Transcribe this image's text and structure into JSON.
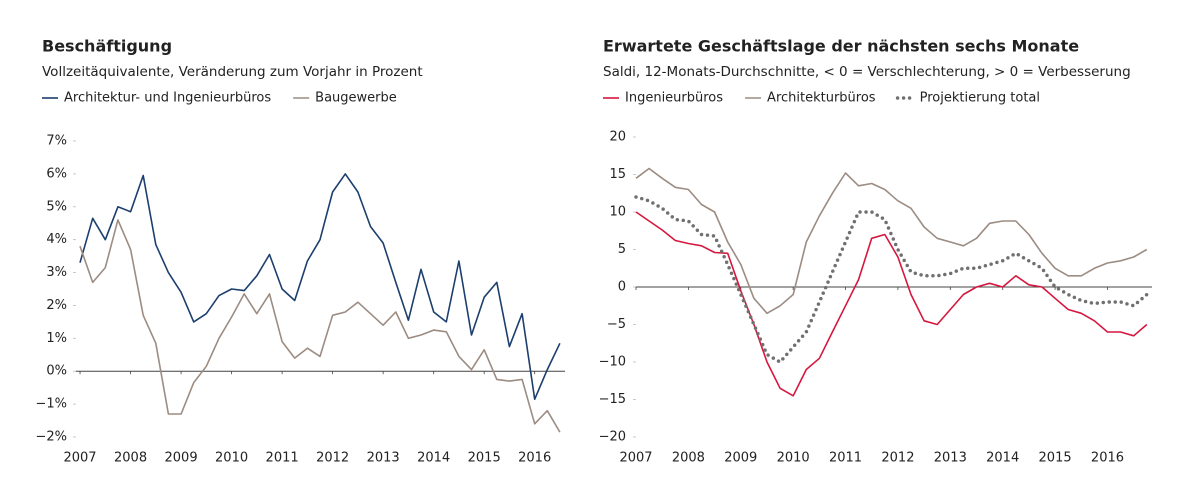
{
  "chart_data": [
    {
      "type": "line",
      "title": "Beschäftigung",
      "subtitle": "Vollzeitäquivalente, Veränderung zum Vorjahr in Prozent",
      "x": [
        2007,
        2007.25,
        2007.5,
        2007.75,
        2008,
        2008.25,
        2008.5,
        2008.75,
        2009,
        2009.25,
        2009.5,
        2009.75,
        2010,
        2010.25,
        2010.5,
        2010.75,
        2011,
        2011.25,
        2011.5,
        2011.75,
        2012,
        2012.25,
        2012.5,
        2012.75,
        2013,
        2013.25,
        2013.5,
        2013.75,
        2014,
        2014.25,
        2014.5,
        2014.75,
        2015,
        2015.25,
        2015.5,
        2015.75,
        2016,
        2016.25,
        2016.5
      ],
      "series": [
        {
          "name": "Architektur- und Ingenieurbüros",
          "color": "#1c3f6e",
          "values": [
            3.3,
            4.65,
            4.0,
            5.0,
            4.85,
            5.95,
            3.85,
            3.0,
            2.4,
            1.5,
            1.75,
            2.3,
            2.5,
            2.45,
            2.9,
            3.55,
            2.5,
            2.15,
            3.35,
            4.0,
            5.45,
            6.0,
            5.45,
            4.4,
            3.9,
            2.7,
            1.55,
            3.1,
            1.8,
            1.5,
            3.35,
            1.1,
            2.25,
            2.7,
            0.75,
            1.75,
            -0.85,
            0.05,
            0.85
          ]
        },
        {
          "name": "Baugewerbe",
          "color": "#9c8c82",
          "values": [
            3.8,
            2.7,
            3.15,
            4.6,
            3.7,
            1.7,
            0.85,
            -1.3,
            -1.3,
            -0.35,
            0.15,
            1.0,
            1.65,
            2.35,
            1.75,
            2.35,
            0.9,
            0.4,
            0.7,
            0.45,
            1.7,
            1.8,
            2.1,
            1.75,
            1.4,
            1.8,
            1.0,
            1.1,
            1.25,
            1.2,
            0.45,
            0.05,
            0.65,
            -0.25,
            -0.3,
            -0.25,
            -1.6,
            -1.2,
            -1.85
          ]
        }
      ],
      "xlim": [
        2006.92,
        2016.6
      ],
      "xticks": [
        2007,
        2008,
        2009,
        2010,
        2011,
        2012,
        2013,
        2014,
        2015,
        2016
      ],
      "ylim": [
        -2,
        7
      ],
      "yticks": [
        {
          "value": -2,
          "label": "−2%"
        },
        {
          "value": -1,
          "label": "−1%"
        },
        {
          "value": 0,
          "label": "0%"
        },
        {
          "value": 1,
          "label": "1%"
        },
        {
          "value": 2,
          "label": "2%"
        },
        {
          "value": 3,
          "label": "3%"
        },
        {
          "value": 4,
          "label": "4%"
        },
        {
          "value": 5,
          "label": "5%"
        },
        {
          "value": 6,
          "label": "6%"
        },
        {
          "value": 7,
          "label": "7%"
        }
      ]
    },
    {
      "type": "line",
      "title": "Erwartete Geschäftslage der nächsten sechs Monate",
      "subtitle": "Saldi, 12-Monats-Durchschnitte, < 0 = Verschlechterung, > 0 = Verbesserung",
      "x": [
        2007,
        2007.25,
        2007.5,
        2007.75,
        2008,
        2008.25,
        2008.5,
        2008.75,
        2009,
        2009.25,
        2009.5,
        2009.75,
        2010,
        2010.25,
        2010.5,
        2010.75,
        2011,
        2011.25,
        2011.5,
        2011.75,
        2012,
        2012.25,
        2012.5,
        2012.75,
        2013,
        2013.25,
        2013.5,
        2013.75,
        2014,
        2014.25,
        2014.5,
        2014.75,
        2015,
        2015.25,
        2015.5,
        2015.75,
        2016,
        2016.25,
        2016.5,
        2016.75
      ],
      "series": [
        {
          "name": "Ingenieurbüros",
          "color": "#d6173f",
          "style": "solid",
          "values": [
            10,
            8.8,
            7.6,
            6.2,
            5.8,
            5.5,
            4.6,
            4.5,
            -0.5,
            -5,
            -10,
            -13.5,
            -14.5,
            -11,
            -9.5,
            -6,
            -2.5,
            1,
            6.5,
            7,
            4,
            -1,
            -4.5,
            -5,
            -3,
            -1,
            0,
            0.5,
            0,
            1.5,
            0.3,
            0,
            -1.5,
            -3,
            -3.5,
            -4.5,
            -6,
            -6,
            -6.5,
            -5
          ]
        },
        {
          "name": "Architekturbüros",
          "color": "#9c8c82",
          "style": "solid",
          "values": [
            14.5,
            15.8,
            14.5,
            13.3,
            13,
            11,
            10,
            6,
            3,
            -1.5,
            -3.5,
            -2.5,
            -1,
            6,
            9.5,
            12.5,
            15.2,
            13.5,
            13.8,
            13,
            11.5,
            10.5,
            8,
            6.5,
            6,
            5.5,
            6.5,
            8.5,
            8.8,
            8.8,
            7,
            4.5,
            2.5,
            1.5,
            1.5,
            2.5,
            3.2,
            3.5,
            4,
            5
          ]
        },
        {
          "name": "Projektierung total",
          "color": "#707070",
          "style": "dotted",
          "values": [
            12,
            11.5,
            10.5,
            9,
            8.8,
            7,
            6.8,
            3,
            -1,
            -5,
            -9,
            -10,
            -8,
            -6,
            -2,
            2,
            6,
            10,
            10,
            9,
            5,
            2,
            1.5,
            1.5,
            1.8,
            2.5,
            2.5,
            3,
            3.5,
            4.5,
            3.5,
            2.5,
            0,
            -1,
            -1.8,
            -2.2,
            -2,
            -2,
            -2.5,
            -1
          ]
        }
      ],
      "xlim": [
        2007,
        2016.85
      ],
      "xticks": [
        2007,
        2008,
        2009,
        2010,
        2011,
        2012,
        2013,
        2014,
        2015,
        2016
      ],
      "ylim": [
        -20,
        20
      ],
      "yticks": [
        {
          "value": -20,
          "label": "−20"
        },
        {
          "value": -15,
          "label": "−15"
        },
        {
          "value": -10,
          "label": "−10"
        },
        {
          "value": -5,
          "label": "−5"
        },
        0,
        5,
        10,
        15,
        20
      ]
    }
  ]
}
